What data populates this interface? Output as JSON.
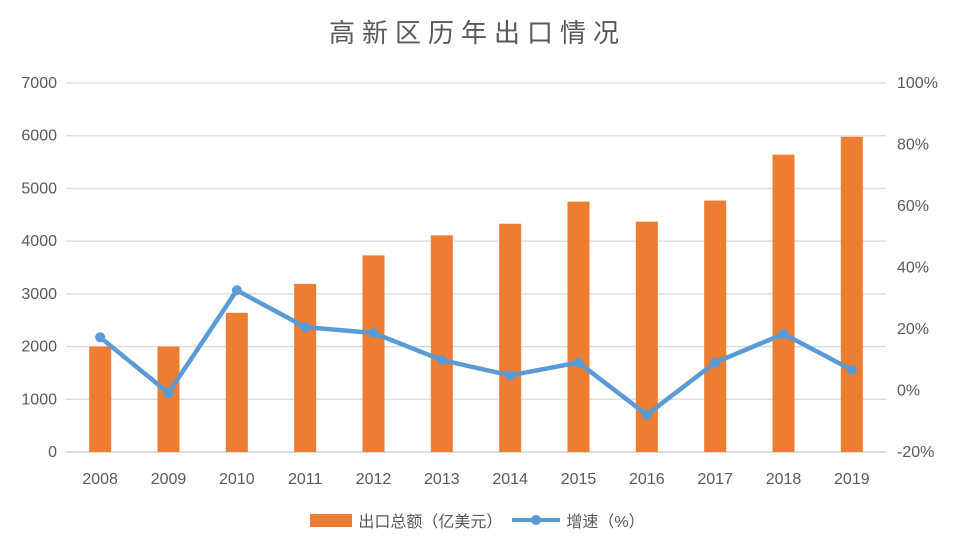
{
  "title": "高新区历年出口情况",
  "chart_data": {
    "type": "combo",
    "title": "高新区历年出口情况",
    "categories": [
      "2008",
      "2009",
      "2010",
      "2011",
      "2012",
      "2013",
      "2014",
      "2015",
      "2016",
      "2017",
      "2018",
      "2019"
    ],
    "series": [
      {
        "name": "出口总额（亿美元）",
        "type": "bar",
        "axis": "left",
        "color": "#ED7D31",
        "values": [
          2000,
          2000,
          2640,
          3190,
          3730,
          4110,
          4330,
          4750,
          4370,
          4770,
          5640,
          5980
        ]
      },
      {
        "name": "增速（%）",
        "type": "line",
        "axis": "right",
        "color": "#5B9BD5",
        "values": [
          17.3,
          -0.8,
          32.6,
          20.6,
          18.7,
          9.9,
          4.9,
          9.1,
          -7.9,
          9.1,
          18.4,
          6.7
        ]
      }
    ],
    "left_axis": {
      "min": 0,
      "max": 7000,
      "tick_step": 1000,
      "tick_labels": [
        "0",
        "1000",
        "2000",
        "3000",
        "4000",
        "5000",
        "6000",
        "7000"
      ]
    },
    "right_axis": {
      "min": -20,
      "max": 100,
      "tick_step": 20,
      "tick_labels": [
        "-20%",
        "0%",
        "20%",
        "40%",
        "60%",
        "80%",
        "100%"
      ]
    },
    "grid": true,
    "legend_position": "bottom",
    "xlabel": "",
    "ylabel": "",
    "colors": {
      "grid": "#D9D9D9",
      "baseline": "#C6C6C6",
      "axis_text": "#595959",
      "title_text": "#595959",
      "background": "#FFFFFF"
    }
  },
  "legend": {
    "items": [
      {
        "label": "出口总额（亿美元）",
        "swatch": "bar"
      },
      {
        "label": "增速（%）",
        "swatch": "line"
      }
    ]
  }
}
